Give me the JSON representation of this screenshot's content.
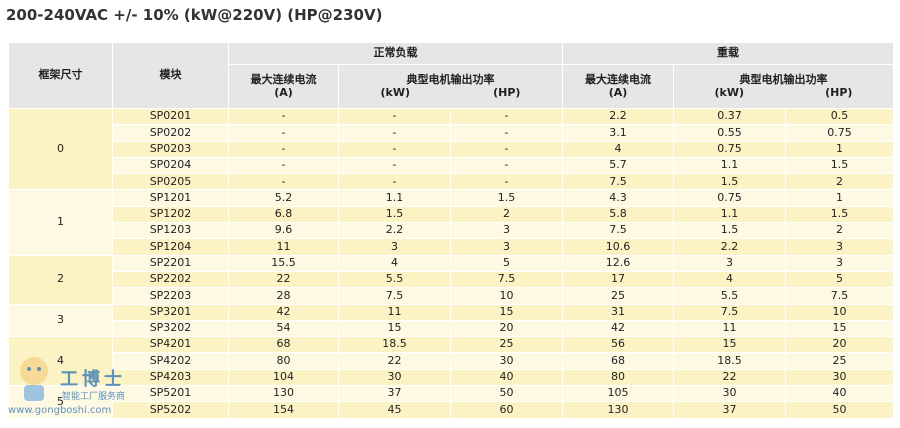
{
  "title": "200-240VAC +/- 10% (kW@220V) (HP@230V)",
  "header": {
    "frame": "框架尺寸",
    "module": "模块",
    "groups": [
      "正常负载",
      "重载"
    ],
    "current": "最大连续电流",
    "current_unit": "(A)",
    "power": "典型电机输出功率",
    "kw_unit": "(kW)",
    "hp_unit": "(HP)"
  },
  "frames": [
    {
      "label": "0",
      "rows": [
        [
          "SP0201",
          "-",
          "-",
          "-",
          "2.2",
          "0.37",
          "0.5"
        ],
        [
          "SP0202",
          "-",
          "-",
          "-",
          "3.1",
          "0.55",
          "0.75"
        ],
        [
          "SP0203",
          "-",
          "-",
          "-",
          "4",
          "0.75",
          "1"
        ],
        [
          "SP0204",
          "-",
          "-",
          "-",
          "5.7",
          "1.1",
          "1.5"
        ],
        [
          "SP0205",
          "-",
          "-",
          "-",
          "7.5",
          "1.5",
          "2"
        ]
      ]
    },
    {
      "label": "1",
      "rows": [
        [
          "SP1201",
          "5.2",
          "1.1",
          "1.5",
          "4.3",
          "0.75",
          "1"
        ],
        [
          "SP1202",
          "6.8",
          "1.5",
          "2",
          "5.8",
          "1.1",
          "1.5"
        ],
        [
          "SP1203",
          "9.6",
          "2.2",
          "3",
          "7.5",
          "1.5",
          "2"
        ],
        [
          "SP1204",
          "11",
          "3",
          "3",
          "10.6",
          "2.2",
          "3"
        ]
      ]
    },
    {
      "label": "2",
      "rows": [
        [
          "SP2201",
          "15.5",
          "4",
          "5",
          "12.6",
          "3",
          "3"
        ],
        [
          "SP2202",
          "22",
          "5.5",
          "7.5",
          "17",
          "4",
          "5"
        ],
        [
          "SP2203",
          "28",
          "7.5",
          "10",
          "25",
          "5.5",
          "7.5"
        ]
      ]
    },
    {
      "label": "3",
      "rows": [
        [
          "SP3201",
          "42",
          "11",
          "15",
          "31",
          "7.5",
          "10"
        ],
        [
          "SP3202",
          "54",
          "15",
          "20",
          "42",
          "11",
          "15"
        ]
      ]
    },
    {
      "label": "4",
      "rows": [
        [
          "SP4201",
          "68",
          "18.5",
          "25",
          "56",
          "15",
          "20"
        ],
        [
          "SP4202",
          "80",
          "22",
          "30",
          "68",
          "18.5",
          "25"
        ],
        [
          "SP4203",
          "104",
          "30",
          "40",
          "80",
          "22",
          "30"
        ]
      ]
    },
    {
      "label": "5",
      "rows": [
        [
          "SP5201",
          "130",
          "37",
          "50",
          "105",
          "30",
          "40"
        ],
        [
          "SP5202",
          "154",
          "45",
          "60",
          "130",
          "37",
          "50"
        ]
      ]
    }
  ],
  "watermark": {
    "brand": "工博士",
    "slogan": "智能工厂服务商",
    "url": "www.gongboshi.com"
  }
}
